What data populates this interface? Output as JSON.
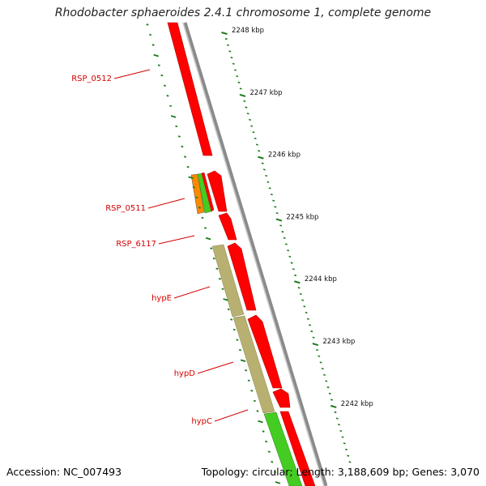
{
  "title": "Rhodobacter sphaeroides 2.4.1 chromosome 1, complete genome",
  "footer": {
    "accession": "Accession: NC_007493",
    "summary": "Topology: circular; Length: 3,188,609 bp; Genes: 3,070"
  },
  "colors": {
    "gene_red": "#ff0000",
    "gene_green": "#44cc22",
    "gene_orange": "#ff8800",
    "gene_tan": "#b8b070",
    "backbone": "#8a8a8a",
    "tick_green": "#1a7a1a",
    "label_red": "#d40000"
  },
  "kbp_ticks": [
    {
      "label": "2248 kbp"
    },
    {
      "label": "2247 kbp"
    },
    {
      "label": "2246 kbp"
    },
    {
      "label": "2245 kbp"
    },
    {
      "label": "2244 kbp"
    },
    {
      "label": "2243 kbp"
    },
    {
      "label": "2242 kbp"
    }
  ],
  "gene_labels": [
    {
      "name": "RSP_0512"
    },
    {
      "name": "RSP_0511"
    },
    {
      "name": "RSP_6117"
    },
    {
      "name": "hypE"
    },
    {
      "name": "hypD"
    },
    {
      "name": "hypC"
    }
  ]
}
